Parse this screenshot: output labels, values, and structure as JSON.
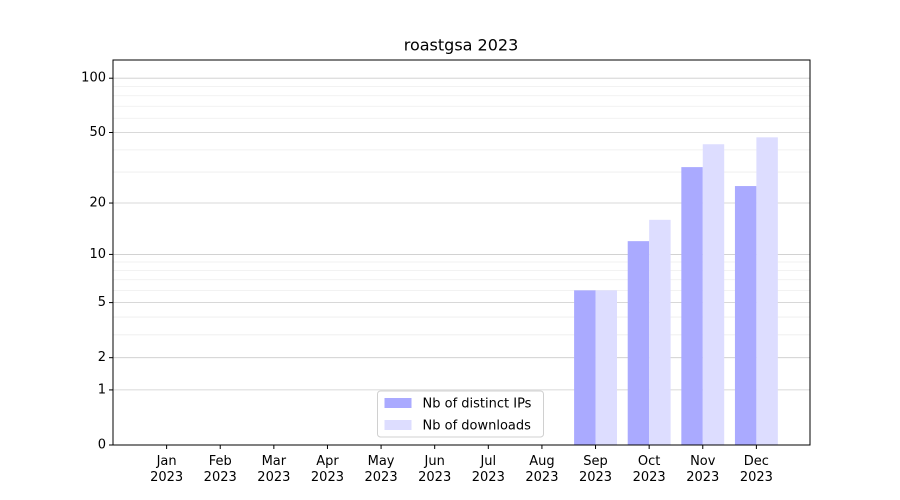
{
  "chart_data": {
    "type": "bar",
    "title": "roastgsa 2023",
    "categories": [
      "Jan\n2023",
      "Feb\n2023",
      "Mar\n2023",
      "Apr\n2023",
      "May\n2023",
      "Jun\n2023",
      "Jul\n2023",
      "Aug\n2023",
      "Sep\n2023",
      "Oct\n2023",
      "Nov\n2023",
      "Dec\n2023"
    ],
    "series": [
      {
        "name": "Nb of distinct IPs",
        "color": "#aaaaff",
        "values": [
          0,
          0,
          0,
          0,
          0,
          0,
          0,
          0,
          6,
          12,
          32,
          25
        ]
      },
      {
        "name": "Nb of downloads",
        "color": "#ddddff",
        "values": [
          0,
          0,
          0,
          0,
          0,
          0,
          0,
          0,
          6,
          16,
          43,
          47
        ]
      }
    ],
    "yscale": "log1p",
    "ylim": [
      0,
      126
    ],
    "yticks": [
      0,
      1,
      2,
      5,
      10,
      20,
      50,
      100
    ],
    "yminor_ticks": [
      3,
      4,
      6,
      7,
      8,
      9,
      30,
      40,
      60,
      70,
      80,
      90
    ],
    "grid": true,
    "legend": "lower center"
  }
}
